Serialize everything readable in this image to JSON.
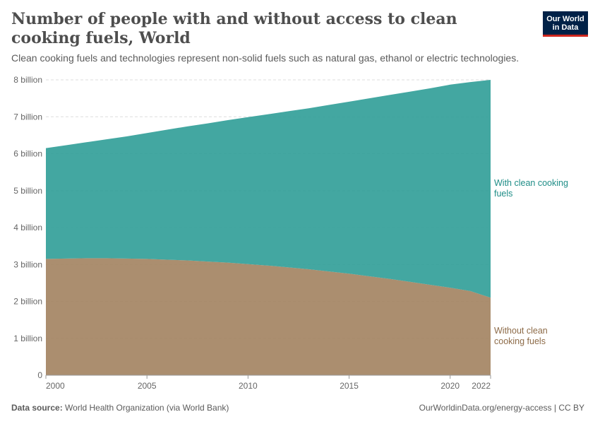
{
  "header": {
    "title": "Number of people with and without access to clean cooking fuels, World",
    "subtitle": "Clean cooking fuels and technologies represent non-solid fuels such as natural gas, ethanol or electric technologies.",
    "logo_line1": "Our World",
    "logo_line2": "in Data"
  },
  "footer": {
    "source_label": "Data source:",
    "source_text": "World Health Organization (via World Bank)",
    "credit": "OurWorldinData.org/energy-access | CC BY"
  },
  "chart_data": {
    "type": "area",
    "stacked": true,
    "x": [
      2000,
      2001,
      2002,
      2003,
      2004,
      2005,
      2006,
      2007,
      2008,
      2009,
      2010,
      2011,
      2012,
      2013,
      2014,
      2015,
      2016,
      2017,
      2018,
      2019,
      2020,
      2021,
      2022
    ],
    "series": [
      {
        "name": "Without clean cooking fuels",
        "label_lines": [
          "Without clean",
          "cooking fuels"
        ],
        "color": "#a2825f",
        "values": [
          3.15,
          3.16,
          3.17,
          3.17,
          3.16,
          3.15,
          3.13,
          3.11,
          3.08,
          3.05,
          3.01,
          2.97,
          2.92,
          2.87,
          2.81,
          2.75,
          2.68,
          2.61,
          2.53,
          2.45,
          2.37,
          2.28,
          2.1
        ]
      },
      {
        "name": "With clean cooking fuels",
        "label_lines": [
          "With clean cooking",
          "fuels"
        ],
        "color": "#2f9d97",
        "values": [
          3.0,
          3.07,
          3.14,
          3.22,
          3.31,
          3.41,
          3.52,
          3.63,
          3.74,
          3.86,
          3.98,
          4.1,
          4.23,
          4.36,
          4.51,
          4.66,
          4.82,
          4.98,
          5.15,
          5.32,
          5.5,
          5.66,
          5.9
        ]
      }
    ],
    "ylim": [
      0,
      8
    ],
    "y_ticks": [
      {
        "value": 0,
        "label": "0"
      },
      {
        "value": 1,
        "label": "1 billion"
      },
      {
        "value": 2,
        "label": "2 billion"
      },
      {
        "value": 3,
        "label": "3 billion"
      },
      {
        "value": 4,
        "label": "4 billion"
      },
      {
        "value": 5,
        "label": "5 billion"
      },
      {
        "value": 6,
        "label": "6 billion"
      },
      {
        "value": 7,
        "label": "7 billion"
      },
      {
        "value": 8,
        "label": "8 billion"
      }
    ],
    "x_ticks": [
      {
        "value": 2000,
        "label": "2000"
      },
      {
        "value": 2005,
        "label": "2005"
      },
      {
        "value": 2010,
        "label": "2010"
      },
      {
        "value": 2015,
        "label": "2015"
      },
      {
        "value": 2020,
        "label": "2020"
      },
      {
        "value": 2022,
        "label": "2022"
      }
    ],
    "grid": true,
    "legend": "right-inline"
  }
}
